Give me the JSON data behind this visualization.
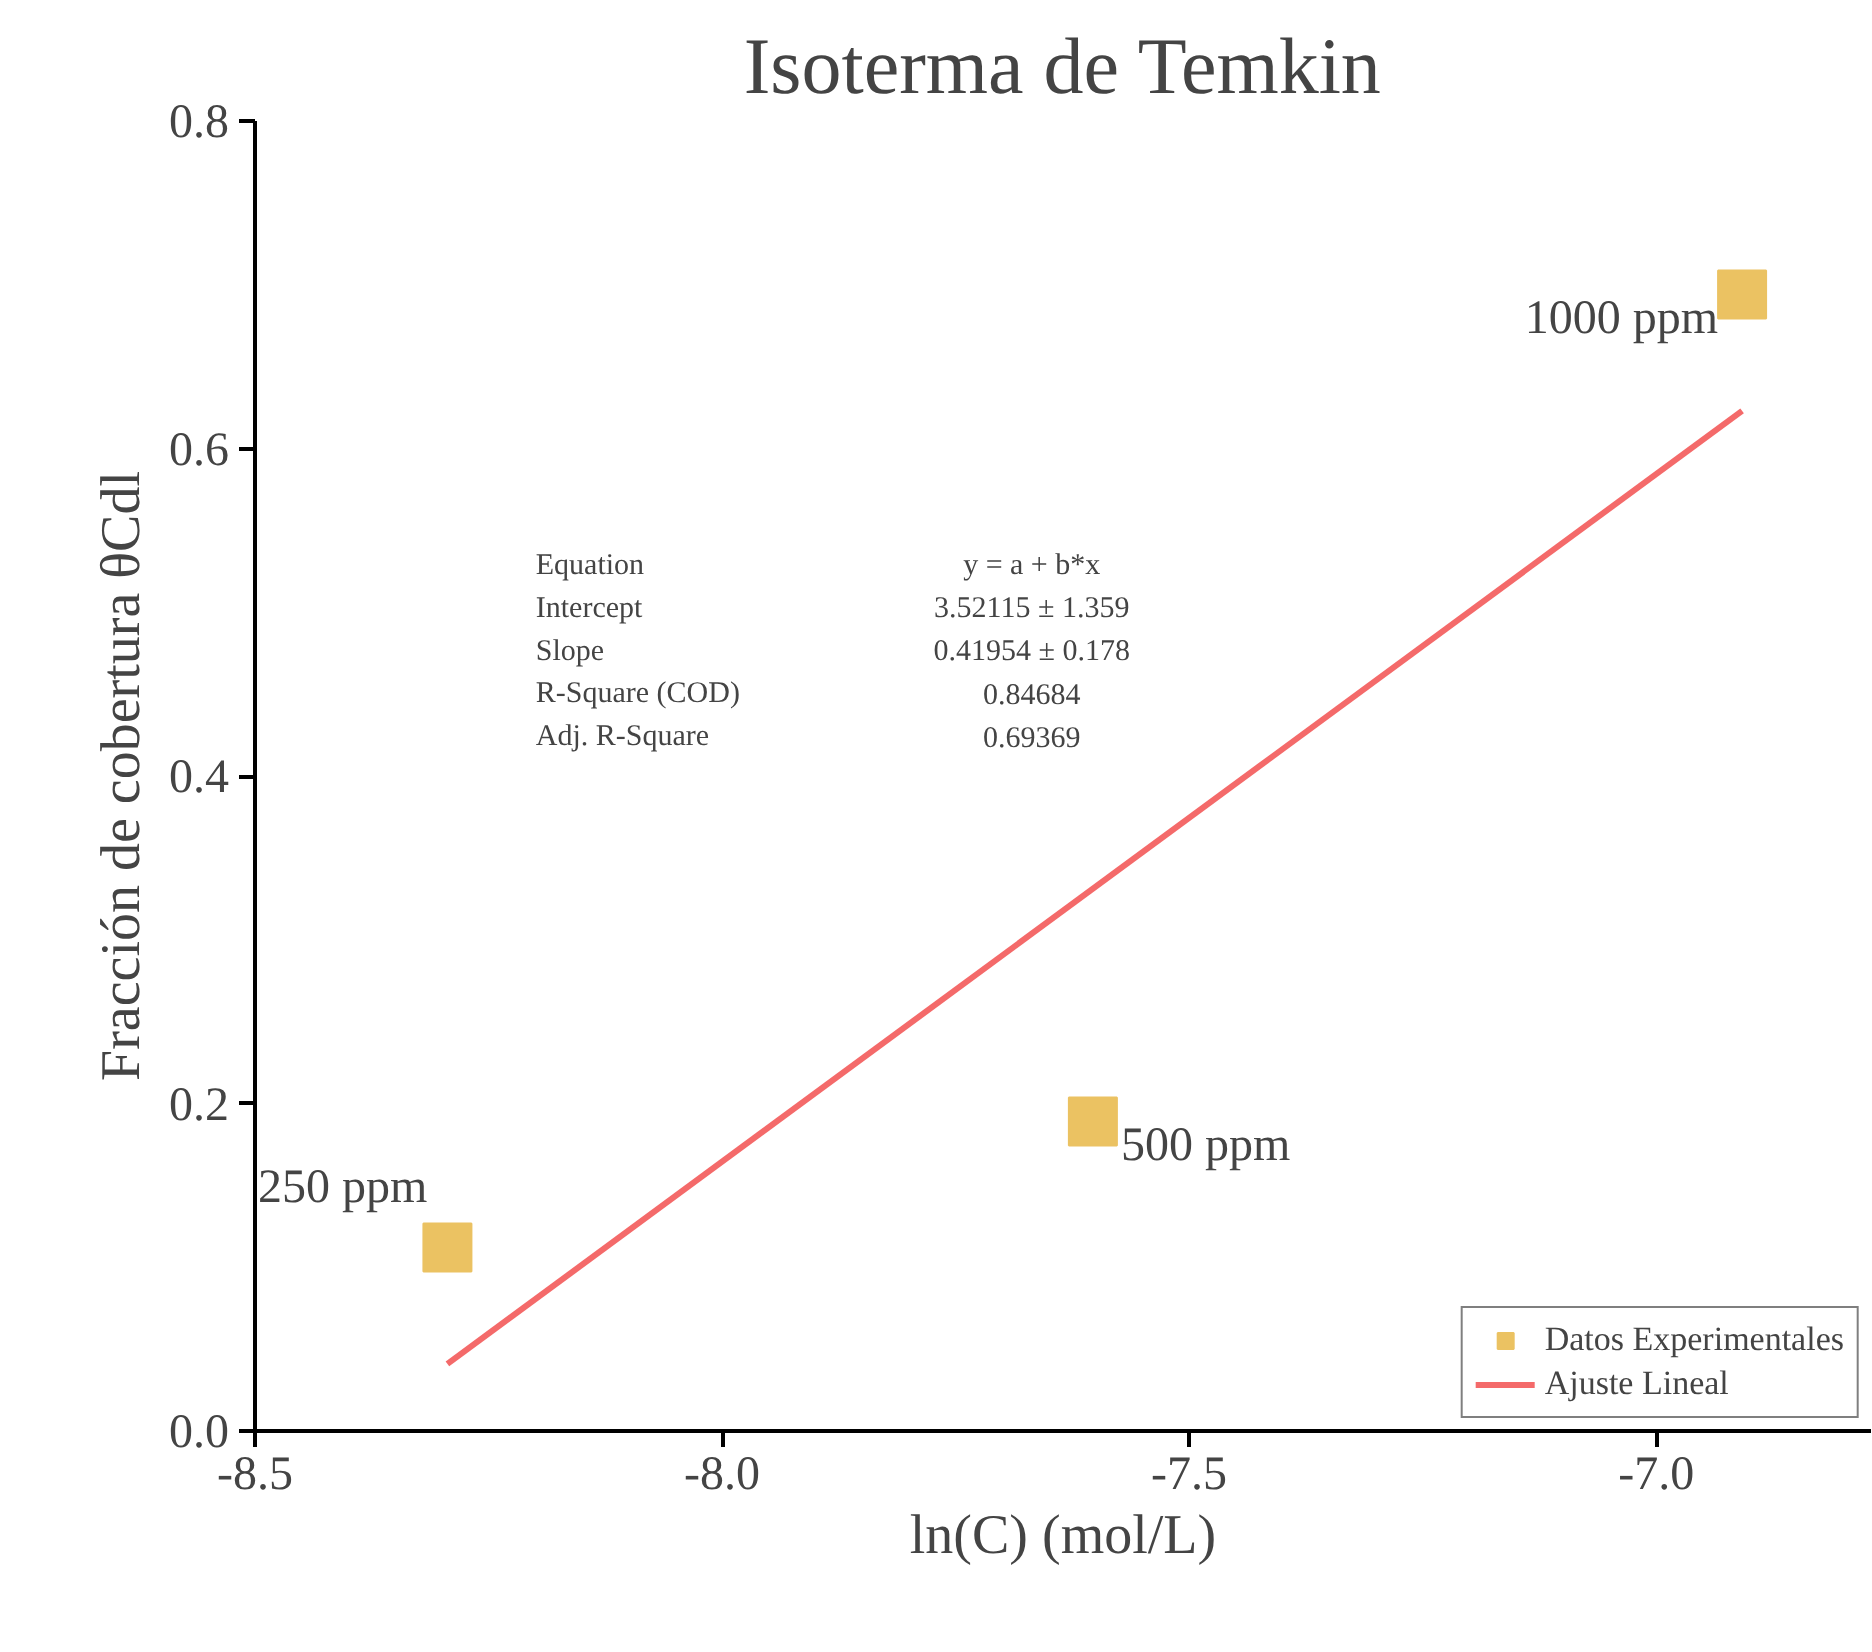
{
  "chart_data": {
    "type": "scatter",
    "title": "Isoterma de Temkin",
    "xlabel": "ln(C) (mol/L)",
    "ylabel": "Fracción de cobertura θCdl",
    "xlim": [
      -8.5,
      -6.77
    ],
    "ylim": [
      0,
      0.8
    ],
    "xticks": [
      -8.5,
      {
        "value": -8,
        "label": "-8.0"
      },
      -7.5,
      {
        "value": -7,
        "label": "-7.0"
      }
    ],
    "yticks": [
      {
        "value": 0,
        "label": "0.0"
      },
      0.2,
      0.4,
      0.6,
      0.8
    ],
    "grid": false,
    "legend": "bottom right",
    "series": [
      {
        "name": "Datos Experimentales",
        "marker": "square",
        "color": "#ebc262",
        "x": [
          -8.294,
          -7.603,
          -6.908
        ],
        "values": [
          0.112,
          0.189,
          0.694
        ]
      },
      {
        "name": "Ajuste Lineal",
        "type": "line",
        "color": "#f46a6a",
        "x": [
          -8.294,
          -6.908
        ],
        "values": [
          0.041,
          0.623
        ],
        "line_style": "solid"
      }
    ],
    "annotations": [
      {
        "text": "250 ppm",
        "x": -8.294,
        "y": 0.112
      },
      {
        "text": "500 ppm",
        "x": -7.603,
        "y": 0.189
      },
      {
        "text": "1000 ppm",
        "x": -6.908,
        "y": 0.694
      },
      "Equation",
      "y = a + b*x",
      "Intercept",
      "3.52115 ± 1.359",
      "Slope",
      "0.41954 ± 0.178",
      "R-Square (COD)",
      "0.84684",
      "Adj. R-Square",
      "0.69369"
    ]
  }
}
